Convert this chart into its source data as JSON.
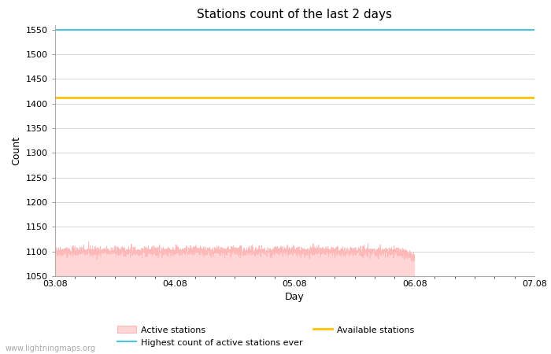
{
  "title": "Stations count of the last 2 days",
  "xlabel": "Day",
  "ylabel": "Count",
  "ylim": [
    1050,
    1560
  ],
  "yticks": [
    1050,
    1100,
    1150,
    1200,
    1250,
    1300,
    1350,
    1400,
    1450,
    1500,
    1550
  ],
  "x_start": 0,
  "x_end": 4,
  "xtick_labels": [
    "03.08",
    "04.08",
    "05.08",
    "06.08",
    "07.08"
  ],
  "xtick_positions": [
    0,
    1,
    2,
    3,
    4
  ],
  "highest_ever": 1550,
  "available_stations": 1413,
  "active_fill_color": "#ffd5d5",
  "active_line_color": "#ffb8b8",
  "highest_color": "#45c8e0",
  "available_color": "#ffc200",
  "background_color": "#ffffff",
  "grid_color": "#d0d0d0",
  "title_fontsize": 11,
  "axis_label_fontsize": 9,
  "tick_fontsize": 8,
  "legend_fontsize": 8,
  "watermark": "www.lightningmaps.org"
}
